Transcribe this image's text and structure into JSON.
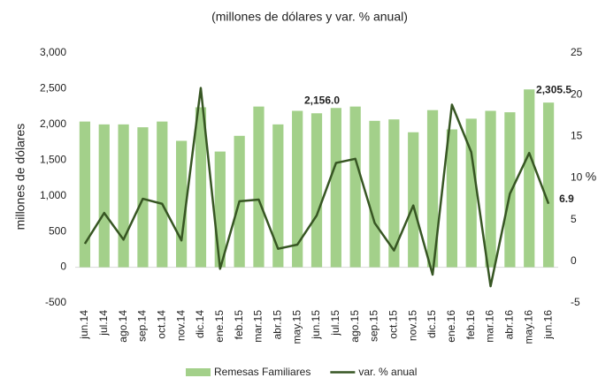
{
  "chart_data": {
    "type": "bar-line",
    "subtitle": "(millones de dólares y var. % anual)",
    "y_label": "millones de dólares",
    "y2_label": "%",
    "categories": [
      "jun.14",
      "jul.14",
      "ago.14",
      "sep.14",
      "oct.14",
      "nov.14",
      "dic.14",
      "ene.15",
      "feb.15",
      "mar.15",
      "abr.15",
      "may.15",
      "jun.15",
      "jul.15",
      "ago.15",
      "sep.15",
      "oct.15",
      "nov.15",
      "dic.15",
      "ene.16",
      "feb.16",
      "mar.16",
      "abr.16",
      "may.16",
      "jun.16"
    ],
    "series": [
      {
        "name": "Remesas Familiares",
        "type": "bar",
        "color": "#a3d08a",
        "values": [
          2040,
          2000,
          2000,
          1960,
          2040,
          1770,
          2240,
          1620,
          1840,
          2250,
          2000,
          2190,
          2156.0,
          2230,
          2250,
          2050,
          2070,
          1890,
          2200,
          1930,
          2080,
          2190,
          2170,
          2490,
          2305.5
        ],
        "value_labels": [
          null,
          null,
          null,
          null,
          null,
          null,
          null,
          null,
          null,
          null,
          null,
          null,
          "2,156.0",
          null,
          null,
          null,
          null,
          null,
          null,
          null,
          null,
          null,
          null,
          null,
          "2,305.5"
        ]
      },
      {
        "name": "var. % anual",
        "type": "line",
        "axis": "y2",
        "color": "#375623",
        "values": [
          2.1,
          5.8,
          2.6,
          7.5,
          6.9,
          2.5,
          20.8,
          -0.9,
          7.2,
          7.4,
          1.5,
          2.0,
          5.5,
          11.8,
          12.3,
          4.6,
          1.3,
          6.7,
          -1.6,
          18.8,
          13.1,
          -3.0,
          8.1,
          13.0,
          6.9
        ],
        "value_labels": [
          null,
          null,
          null,
          null,
          null,
          null,
          null,
          null,
          null,
          null,
          null,
          null,
          null,
          null,
          null,
          null,
          null,
          null,
          null,
          null,
          null,
          null,
          null,
          null,
          "6.9"
        ]
      }
    ],
    "ylim": [
      -500,
      3000
    ],
    "yticks": [
      -500,
      0,
      500,
      {
        "value": 1000,
        "label": "1,000"
      },
      {
        "value": 1500,
        "label": "1,500"
      },
      {
        "value": 2000,
        "label": "2,000"
      },
      {
        "value": 2500,
        "label": "2,500"
      },
      {
        "value": 3000,
        "label": "3,000"
      }
    ],
    "y2lim": [
      -5,
      25
    ],
    "y2ticks": [
      -5,
      0,
      5,
      10,
      15,
      20,
      25
    ],
    "grid": false
  }
}
